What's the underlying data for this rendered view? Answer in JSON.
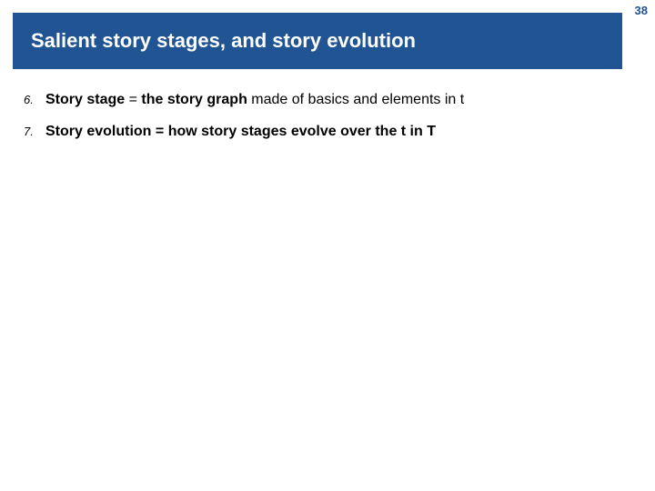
{
  "slide_number": "38",
  "header": {
    "title": "Salient story stages, and story evolution",
    "background_color": "#205493",
    "text_color": "#ffffff",
    "title_fontsize": 22
  },
  "items": [
    {
      "number": "6.",
      "term": "Story stage",
      "eq": " = ",
      "bold_continuation": "the story graph",
      "rest": " made of basics and elements in t"
    },
    {
      "number": "7.",
      "term": "Story evolution",
      "eq": "",
      "bold_continuation": " = how story stages evolve over the t in T",
      "rest": ""
    }
  ],
  "colors": {
    "slide_number_color": "#205493",
    "body_text_color": "#000000",
    "background": "#ffffff"
  }
}
